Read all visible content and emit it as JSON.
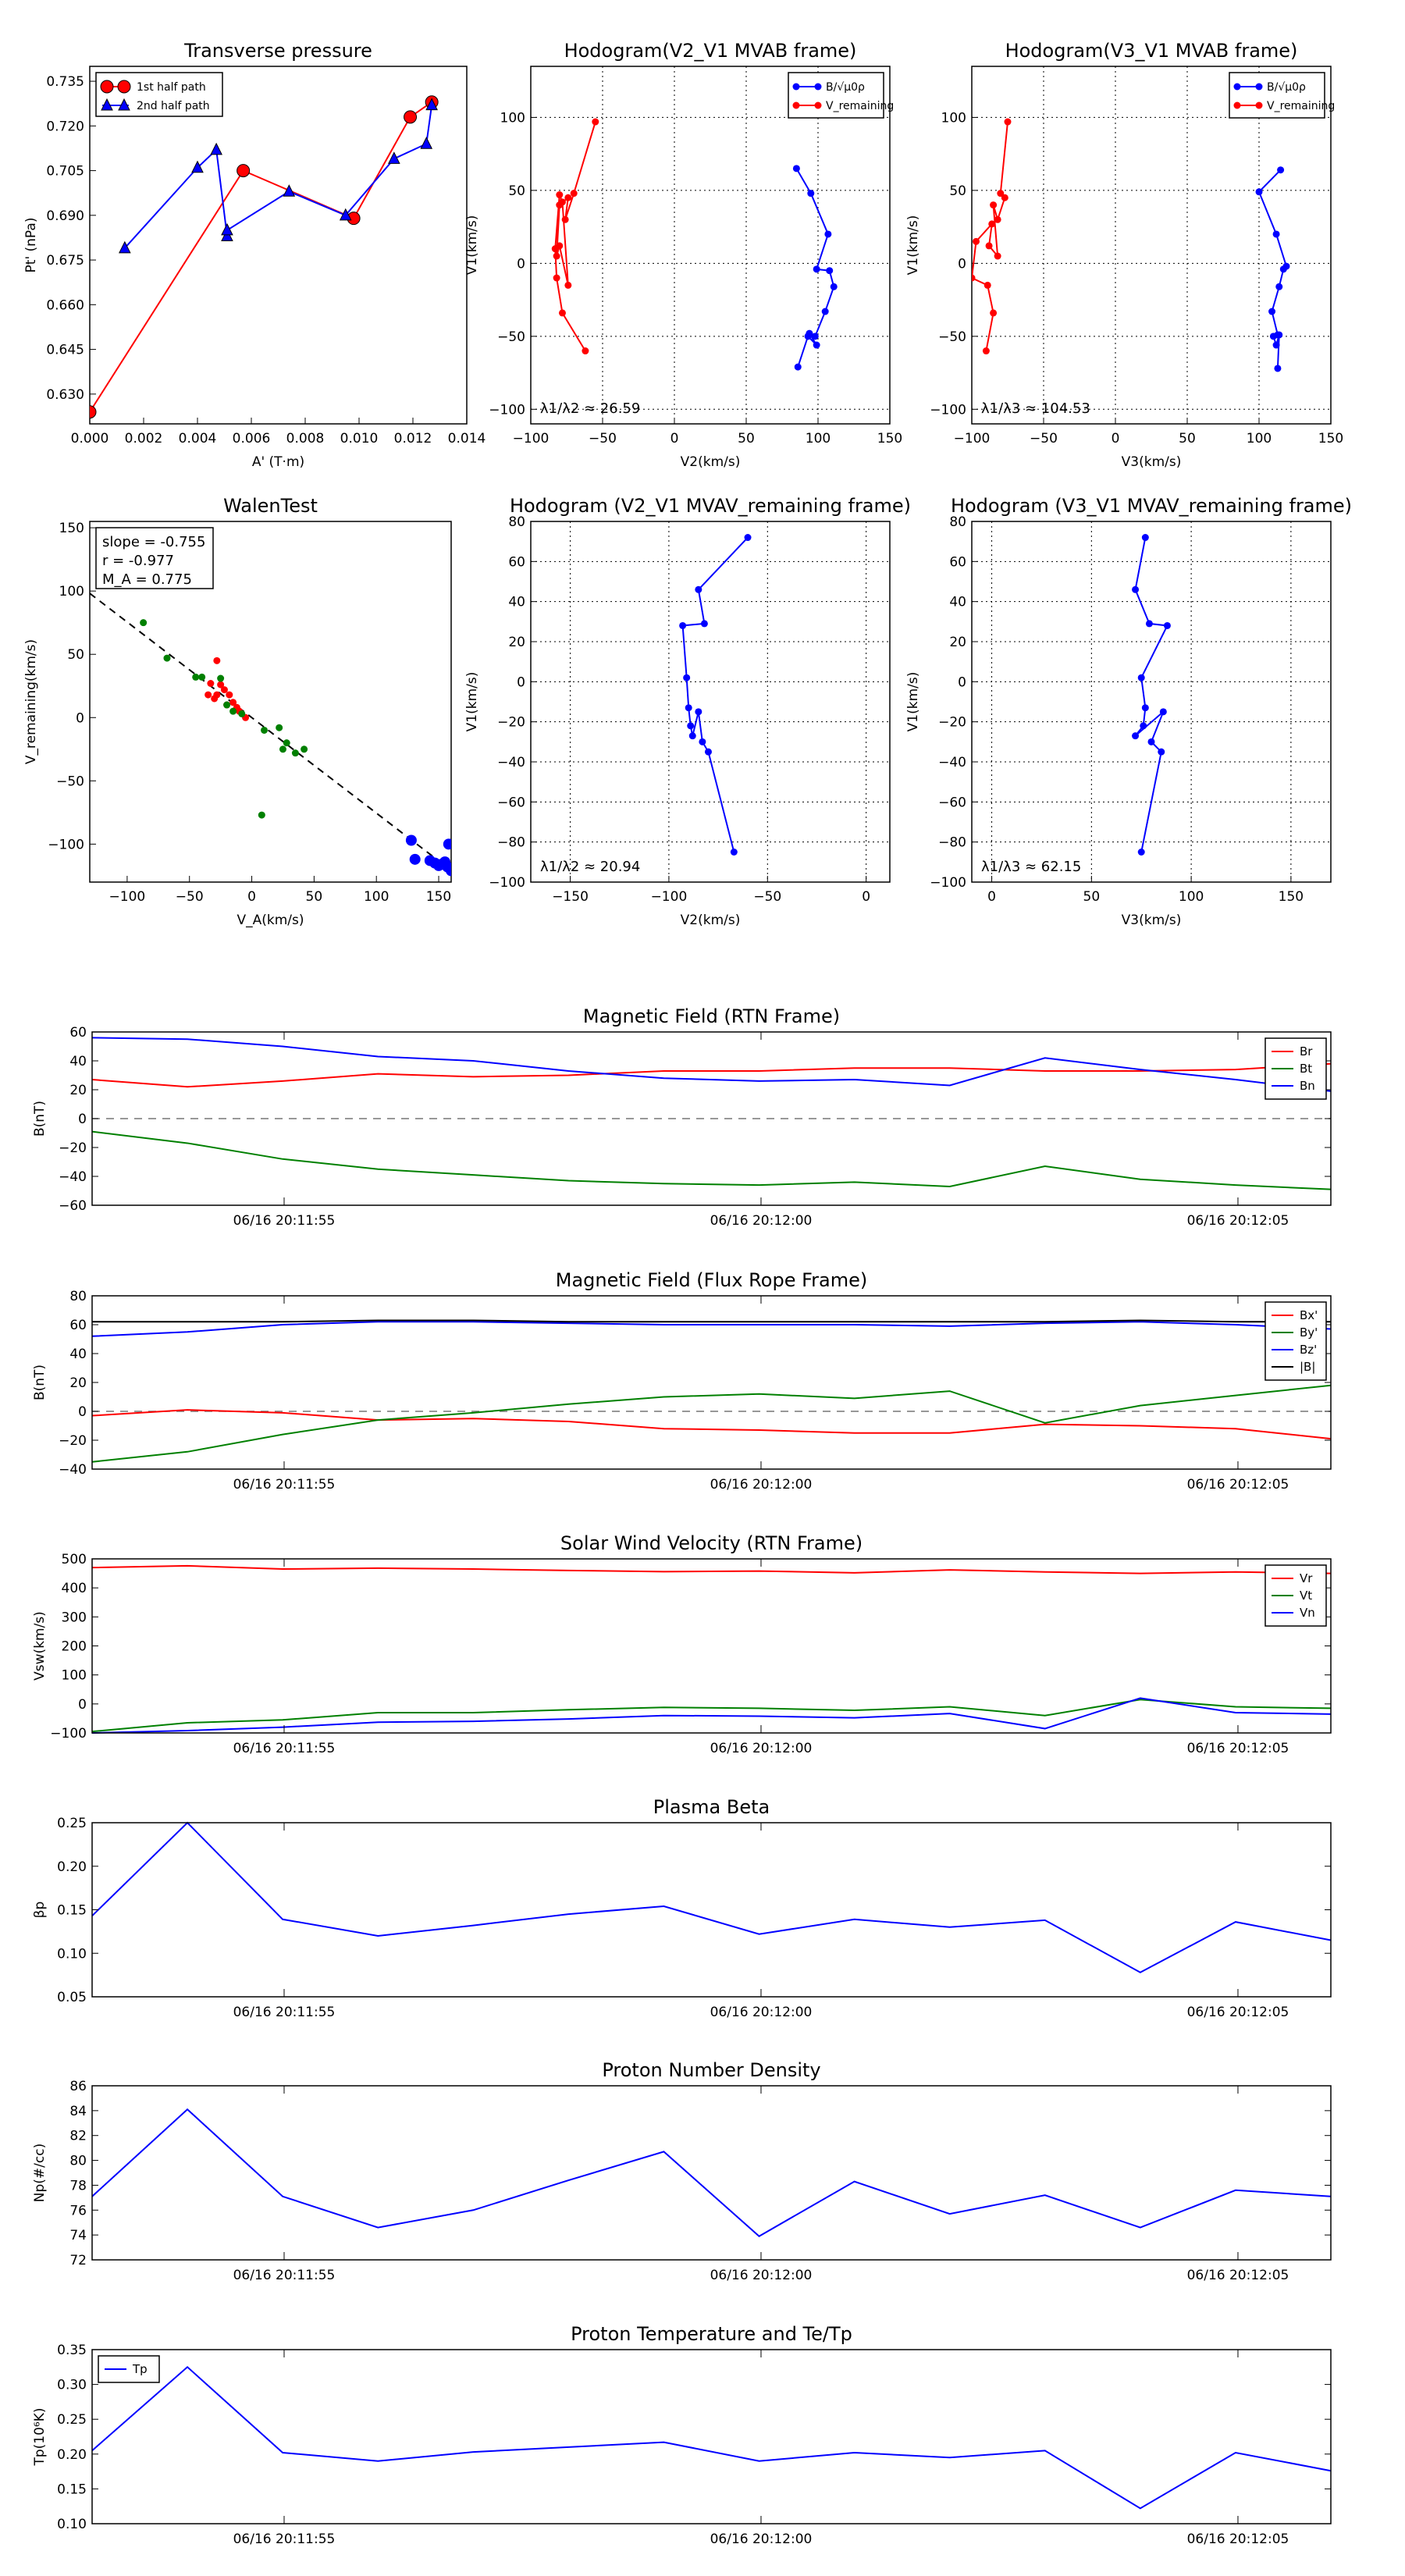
{
  "colors": {
    "red": "#ff0000",
    "green": "#008000",
    "blue": "#0000ff",
    "black": "#000000"
  },
  "time_ticks": [
    "06/16 20:11:55",
    "06/16 20:12:00",
    "06/16 20:12:05"
  ],
  "chart_data": [
    {
      "id": "transverse-pressure",
      "type": "line",
      "title": "Transverse pressure",
      "xlabel": "A' (T·m)",
      "ylabel": "Pt' (nPa)",
      "xlim": [
        0,
        0.014
      ],
      "ylim": [
        0.62,
        0.74
      ],
      "xticks": [
        "0.000",
        "0.002",
        "0.004",
        "0.006",
        "0.008",
        "0.010",
        "0.012",
        "0.014"
      ],
      "yticks": [
        "0.630",
        "0.645",
        "0.660",
        "0.675",
        "0.690",
        "0.705",
        "0.720",
        "0.735"
      ],
      "legend": [
        "1st half path",
        "2nd half path"
      ],
      "series": [
        {
          "name": "1st half path",
          "color": "red",
          "marker": "circle",
          "x": [
            0.0,
            0.0057,
            0.0098,
            0.0119,
            0.0127
          ],
          "y": [
            0.624,
            0.705,
            0.689,
            0.723,
            0.728
          ]
        },
        {
          "name": "2nd half path",
          "color": "blue",
          "marker": "triangle",
          "x": [
            0.0013,
            0.004,
            0.0047,
            0.0051,
            0.0051,
            0.0074,
            0.0095,
            0.0113,
            0.0125,
            0.0127
          ],
          "y": [
            0.679,
            0.706,
            0.712,
            0.683,
            0.685,
            0.698,
            0.69,
            0.709,
            0.714,
            0.727
          ]
        }
      ]
    },
    {
      "id": "hodogram-v2-mvab",
      "type": "line",
      "title": "Hodogram(V2_V1 MVAB frame)",
      "xlabel": "V2(km/s)",
      "ylabel": "V1(km/s)",
      "xlim": [
        -100,
        150
      ],
      "ylim": [
        -110,
        135
      ],
      "xticks": [
        "−100",
        "−50",
        "0",
        "50",
        "100",
        "150"
      ],
      "yticks": [
        "−100",
        "−50",
        "0",
        "50",
        "100"
      ],
      "xtick_values": [
        -100,
        -50,
        0,
        50,
        100,
        150
      ],
      "ytick_values": [
        -100,
        -50,
        0,
        50,
        100
      ],
      "legend": [
        "B/√μ0ρ",
        "V_remaining"
      ],
      "annotation": "λ1/λ2 ≈ 26.59",
      "series": [
        {
          "name": "B/√μ0ρ",
          "color": "blue",
          "x": [
            85,
            95,
            107,
            99,
            108,
            111,
            105,
            98,
            94,
            99,
            93,
            86
          ],
          "y": [
            65,
            48,
            20,
            -4,
            -5,
            -16,
            -33,
            -50,
            -48,
            -56,
            -50,
            -71
          ]
        },
        {
          "name": "V_remaining",
          "color": "red",
          "x": [
            -55,
            -70,
            -76,
            -74,
            -80,
            -82,
            -80,
            -74,
            -78,
            -80,
            -83,
            -82,
            -78,
            -62
          ],
          "y": [
            97,
            48,
            30,
            45,
            40,
            5,
            12,
            -15,
            42,
            47,
            10,
            -10,
            -34,
            -60
          ]
        }
      ]
    },
    {
      "id": "hodogram-v3-mvab",
      "type": "line",
      "title": "Hodogram(V3_V1 MVAB frame)",
      "xlabel": "V3(km/s)",
      "ylabel": "V1(km/s)",
      "xlim": [
        -100,
        150
      ],
      "ylim": [
        -110,
        135
      ],
      "xticks": [
        "−100",
        "−50",
        "0",
        "50",
        "100",
        "150"
      ],
      "yticks": [
        "−100",
        "−50",
        "0",
        "50",
        "100"
      ],
      "xtick_values": [
        -100,
        -50,
        0,
        50,
        100,
        150
      ],
      "ytick_values": [
        -100,
        -50,
        0,
        50,
        100
      ],
      "legend": [
        "B/√μ0ρ",
        "V_remaining"
      ],
      "annotation": "λ1/λ3 ≈ 104.53",
      "series": [
        {
          "name": "B/√μ0ρ",
          "color": "blue",
          "x": [
            115,
            100,
            112,
            119,
            117,
            114,
            109,
            113,
            110,
            112,
            114,
            113
          ],
          "y": [
            64,
            49,
            20,
            -2,
            -4,
            -16,
            -33,
            -49,
            -50,
            -56,
            -49,
            -72
          ]
        },
        {
          "name": "V_remaining",
          "color": "red",
          "x": [
            -75,
            -80,
            -77,
            -82,
            -85,
            -82,
            -88,
            -86,
            -97,
            -100,
            -89,
            -85,
            -90
          ],
          "y": [
            97,
            48,
            45,
            30,
            40,
            5,
            12,
            27,
            15,
            -10,
            -15,
            -34,
            -60
          ]
        }
      ]
    },
    {
      "id": "walen-test",
      "type": "scatter",
      "title": "WalenTest",
      "xlabel": "V_A(km/s)",
      "ylabel": "V_remaining(km/s)",
      "xlim": [
        -130,
        160
      ],
      "ylim": [
        -130,
        155
      ],
      "xticks": [
        "−100",
        "−50",
        "0",
        "50",
        "100",
        "150"
      ],
      "yticks": [
        "−100",
        "−50",
        "0",
        "50",
        "100",
        "150"
      ],
      "xtick_values": [
        -100,
        -50,
        0,
        50,
        100,
        150
      ],
      "ytick_values": [
        -100,
        -50,
        0,
        50,
        100,
        150
      ],
      "stats": [
        "slope = -0.755",
        "r = -0.977",
        "M_A = 0.775"
      ],
      "fit_line": {
        "slope": -0.755,
        "intercept": 0.0
      },
      "series": [
        {
          "name": "red",
          "color": "red",
          "x": [
            -28,
            -33,
            -22,
            -18,
            -25,
            -35,
            -30,
            -15,
            -12,
            -10,
            -5,
            -20,
            -28
          ],
          "y": [
            45,
            27,
            22,
            18,
            26,
            18,
            15,
            12,
            8,
            5,
            0,
            10,
            18
          ]
        },
        {
          "name": "green",
          "color": "green",
          "x": [
            -87,
            -68,
            -45,
            -40,
            -25,
            -20,
            -15,
            -8,
            10,
            22,
            25,
            28,
            35,
            42,
            8
          ],
          "y": [
            75,
            47,
            32,
            32,
            31,
            10,
            5,
            3,
            -10,
            -8,
            -25,
            -20,
            -28,
            -25,
            -77
          ]
        },
        {
          "name": "blue",
          "color": "blue",
          "x": [
            128,
            131,
            143,
            147,
            150,
            152,
            155,
            157,
            158,
            160
          ],
          "y": [
            -97,
            -112,
            -113,
            -115,
            -117,
            -116,
            -114,
            -118,
            -100,
            -121
          ]
        }
      ]
    },
    {
      "id": "hodogram-v2-mvav",
      "type": "line",
      "title": "Hodogram (V2_V1 MVAV_remaining frame)",
      "xlabel": "V2(km/s)",
      "ylabel": "V1(km/s)",
      "xlim": [
        -170,
        12
      ],
      "ylim": [
        -100,
        80
      ],
      "xticks": [
        "−150",
        "−100",
        "−50",
        "0"
      ],
      "yticks": [
        "−100",
        "−80",
        "−60",
        "−40",
        "−20",
        "0",
        "20",
        "40",
        "60",
        "80"
      ],
      "xtick_values": [
        -150,
        -100,
        -50,
        0
      ],
      "ytick_values": [
        -100,
        -80,
        -60,
        -40,
        -20,
        0,
        20,
        40,
        60,
        80
      ],
      "annotation": "λ1/λ2 ≈ 20.94",
      "series": [
        {
          "name": "blue",
          "color": "blue",
          "x": [
            -60,
            -85,
            -82,
            -93,
            -91,
            -90,
            -89,
            -88,
            -85,
            -83,
            -80,
            -67
          ],
          "y": [
            72,
            46,
            29,
            28,
            2,
            -13,
            -22,
            -27,
            -15,
            -30,
            -35,
            -85
          ]
        }
      ]
    },
    {
      "id": "hodogram-v3-mvav",
      "type": "line",
      "title": "Hodogram (V3_V1 MVAV_remaining frame)",
      "xlabel": "V3(km/s)",
      "ylabel": "V1(km/s)",
      "xlim": [
        -10,
        170
      ],
      "ylim": [
        -100,
        80
      ],
      "xticks": [
        "0",
        "50",
        "100",
        "150"
      ],
      "yticks": [
        "−100",
        "−80",
        "−60",
        "−40",
        "−20",
        "0",
        "20",
        "40",
        "60",
        "80"
      ],
      "xtick_values": [
        0,
        50,
        100,
        150
      ],
      "ytick_values": [
        -100,
        -80,
        -60,
        -40,
        -20,
        0,
        20,
        40,
        60,
        80
      ],
      "annotation": "λ1/λ3 ≈ 62.15",
      "series": [
        {
          "name": "blue",
          "color": "blue",
          "x": [
            77,
            72,
            79,
            88,
            75,
            77,
            76,
            72,
            86,
            80,
            85,
            75
          ],
          "y": [
            72,
            46,
            29,
            28,
            2,
            -13,
            -22,
            -27,
            -15,
            -30,
            -35,
            -85
          ]
        }
      ]
    },
    {
      "id": "magnetic-field-rtn",
      "type": "line",
      "title": "Magnetic Field (RTN Frame)",
      "ylabel": "B(nT)",
      "ylim": [
        -60,
        60
      ],
      "yticks": [
        "−60",
        "−40",
        "−20",
        "0",
        "20",
        "40",
        "60"
      ],
      "ytick_values": [
        -60,
        -40,
        -20,
        0,
        20,
        40,
        60
      ],
      "legend": [
        "Br",
        "Bt",
        "Bn"
      ],
      "series": [
        {
          "name": "Br",
          "color": "red",
          "values": [
            27,
            22,
            26,
            31,
            29,
            30,
            33,
            33,
            35,
            35,
            33,
            33,
            34,
            38
          ]
        },
        {
          "name": "Bt",
          "color": "green",
          "values": [
            -9,
            -17,
            -28,
            -35,
            -39,
            -43,
            -45,
            -46,
            -44,
            -47,
            -33,
            -42,
            -46,
            -49
          ]
        },
        {
          "name": "Bn",
          "color": "blue",
          "values": [
            56,
            55,
            50,
            43,
            40,
            33,
            28,
            26,
            27,
            23,
            42,
            34,
            27,
            19
          ]
        }
      ]
    },
    {
      "id": "magnetic-field-flux-rope",
      "type": "line",
      "title": "Magnetic Field (Flux Rope Frame)",
      "ylabel": "B(nT)",
      "ylim": [
        -40,
        80
      ],
      "yticks": [
        "−40",
        "−20",
        "0",
        "20",
        "40",
        "60",
        "80"
      ],
      "ytick_values": [
        -40,
        -20,
        0,
        20,
        40,
        60,
        80
      ],
      "legend": [
        "Bx'",
        "By'",
        "Bz'",
        "|B|"
      ],
      "series": [
        {
          "name": "Bx'",
          "color": "red",
          "values": [
            -3,
            1,
            -1,
            -6,
            -5,
            -7,
            -12,
            -13,
            -15,
            -15,
            -9,
            -10,
            -12,
            -19
          ]
        },
        {
          "name": "By'",
          "color": "green",
          "values": [
            -35,
            -28,
            -16,
            -6,
            -1,
            5,
            10,
            12,
            9,
            14,
            -8,
            4,
            11,
            18
          ]
        },
        {
          "name": "Bz'",
          "color": "blue",
          "values": [
            52,
            55,
            60,
            62,
            62,
            61,
            60,
            60,
            60,
            59,
            61,
            62,
            60,
            57
          ]
        },
        {
          "name": "|B|",
          "color": "black",
          "values": [
            62,
            62,
            62,
            63,
            63,
            62,
            62,
            62,
            62,
            62,
            62,
            63,
            62,
            62
          ]
        }
      ]
    },
    {
      "id": "solar-wind-velocity",
      "type": "line",
      "title": "Solar Wind Velocity (RTN Frame)",
      "ylabel": "Vsw(km/s)",
      "ylim": [
        -100,
        500
      ],
      "yticks": [
        "−100",
        "0",
        "100",
        "200",
        "300",
        "400",
        "500"
      ],
      "ytick_values": [
        -100,
        0,
        100,
        200,
        300,
        400,
        500
      ],
      "legend": [
        "Vr",
        "Vt",
        "Vn"
      ],
      "series": [
        {
          "name": "Vr",
          "color": "red",
          "values": [
            470,
            476,
            465,
            468,
            465,
            460,
            456,
            458,
            452,
            462,
            455,
            450,
            455,
            450
          ]
        },
        {
          "name": "Vt",
          "color": "green",
          "values": [
            -95,
            -65,
            -55,
            -30,
            -30,
            -20,
            -12,
            -15,
            -22,
            -10,
            -40,
            15,
            -10,
            -15
          ]
        },
        {
          "name": "Vn",
          "color": "blue",
          "values": [
            -100,
            -92,
            -80,
            -63,
            -60,
            -52,
            -40,
            -42,
            -48,
            -33,
            -85,
            20,
            -30,
            -35
          ]
        }
      ]
    },
    {
      "id": "plasma-beta",
      "type": "line",
      "title": "Plasma Beta",
      "ylabel": "βp",
      "ylim": [
        0.05,
        0.25
      ],
      "yticks": [
        "0.05",
        "0.10",
        "0.15",
        "0.20",
        "0.25"
      ],
      "ytick_values": [
        0.05,
        0.1,
        0.15,
        0.2,
        0.25
      ],
      "series": [
        {
          "name": "β",
          "color": "blue",
          "values": [
            0.143,
            0.25,
            0.139,
            0.12,
            0.132,
            0.145,
            0.154,
            0.122,
            0.139,
            0.13,
            0.138,
            0.078,
            0.136,
            0.115
          ]
        }
      ]
    },
    {
      "id": "proton-density",
      "type": "line",
      "title": "Proton Number Density",
      "ylabel": "Np(#/cc)",
      "ylim": [
        72,
        86
      ],
      "yticks": [
        "72",
        "74",
        "76",
        "78",
        "80",
        "82",
        "84",
        "86"
      ],
      "ytick_values": [
        72,
        74,
        76,
        78,
        80,
        82,
        84,
        86
      ],
      "series": [
        {
          "name": "Np",
          "color": "blue",
          "values": [
            77.1,
            84.1,
            77.1,
            74.6,
            76.0,
            78.4,
            80.7,
            73.9,
            78.3,
            75.7,
            77.2,
            74.6,
            77.6,
            77.1
          ]
        }
      ]
    },
    {
      "id": "proton-temperature",
      "type": "line",
      "title": "Proton Temperature and Te/Tp",
      "ylabel": "Tp(10⁶K)",
      "ylim": [
        0.1,
        0.35
      ],
      "yticks": [
        "0.10",
        "0.15",
        "0.20",
        "0.25",
        "0.30",
        "0.35"
      ],
      "ytick_values": [
        0.1,
        0.15,
        0.2,
        0.25,
        0.3,
        0.35
      ],
      "legend": [
        "Tp"
      ],
      "series": [
        {
          "name": "Tp",
          "color": "blue",
          "values": [
            0.205,
            0.325,
            0.202,
            0.19,
            0.203,
            0.21,
            0.217,
            0.19,
            0.202,
            0.195,
            0.205,
            0.122,
            0.202,
            0.176
          ]
        }
      ]
    }
  ]
}
